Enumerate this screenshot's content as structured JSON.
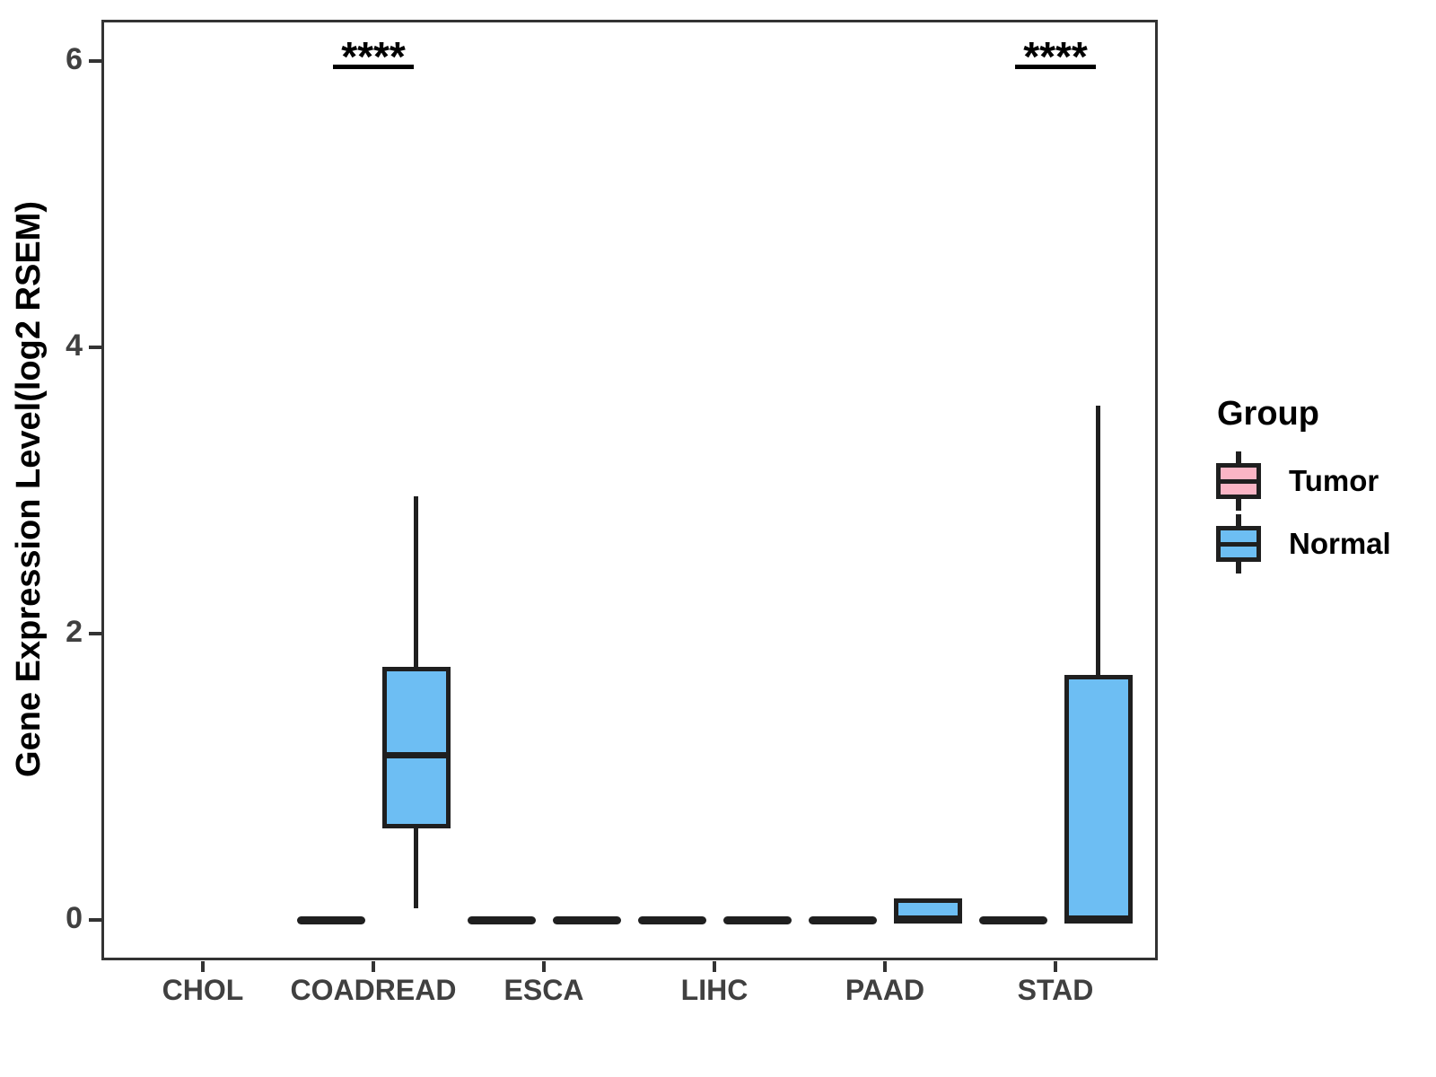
{
  "figure": {
    "background": "#ffffff"
  },
  "legend": {
    "title": "Group",
    "entries": [
      {
        "label": "Tumor",
        "color": "#FAB5C5"
      },
      {
        "label": "Normal",
        "color": "#6DBEF3"
      }
    ]
  },
  "colors": {
    "tumor_fill": "#FAB5C5",
    "normal_fill": "#6DBEF3",
    "box_stroke": "#1f1f1f",
    "panel_border": "#333333",
    "axis_text": "#404040",
    "annotation": "#000000"
  },
  "chart_data": {
    "type": "boxplot",
    "title": "",
    "xlabel": "",
    "ylabel": "Gene Expression Level(log2 RSEM)",
    "ylim": [
      -0.28,
      6.29
    ],
    "y_ticks": [
      0,
      2,
      4,
      6
    ],
    "grid": false,
    "legend_position": "right",
    "categories": [
      "CHOL",
      "COADREAD",
      "ESCA",
      "LIHC",
      "PAAD",
      "STAD"
    ],
    "groups": [
      "Tumor",
      "Normal"
    ],
    "series": [
      {
        "name": "Tumor",
        "color": "#FAB5C5",
        "boxes": [
          null,
          {
            "min": 0,
            "q1": 0,
            "median": 0,
            "q3": 0,
            "max": 0
          },
          {
            "min": 0,
            "q1": 0,
            "median": 0,
            "q3": 0,
            "max": 0
          },
          {
            "min": 0,
            "q1": 0,
            "median": 0,
            "q3": 0,
            "max": 0
          },
          {
            "min": 0,
            "q1": 0,
            "median": 0,
            "q3": 0,
            "max": 0
          },
          {
            "min": 0,
            "q1": 0,
            "median": 0,
            "q3": 0,
            "max": 0
          }
        ]
      },
      {
        "name": "Normal",
        "color": "#6DBEF3",
        "boxes": [
          null,
          {
            "min": 0.08,
            "q1": 0.64,
            "median": 1.15,
            "q3": 1.77,
            "max": 2.96
          },
          {
            "min": 0,
            "q1": 0,
            "median": 0,
            "q3": 0,
            "max": 0
          },
          {
            "min": 0,
            "q1": 0,
            "median": 0,
            "q3": 0,
            "max": 0
          },
          {
            "min": 0,
            "q1": 0,
            "median": 0,
            "q3": 0.15,
            "max": 0.15
          },
          {
            "min": 0,
            "q1": 0,
            "median": 0,
            "q3": 1.71,
            "max": 3.59
          }
        ]
      }
    ],
    "annotations": [
      {
        "category": "COADREAD",
        "label": "****"
      },
      {
        "category": "STAD",
        "label": "****"
      }
    ]
  }
}
